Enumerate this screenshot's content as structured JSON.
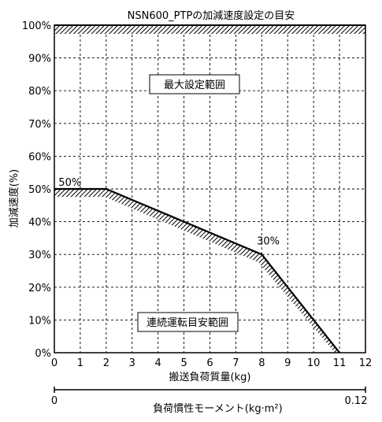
{
  "chart_data": {
    "type": "line",
    "title": "NSN600_PTPの加減速度設定の目安",
    "xlabel": "搬送負荷質量(kg)",
    "ylabel": "加減速度(%)",
    "xlim": [
      0,
      12
    ],
    "ylim": [
      0,
      100
    ],
    "x_ticks": [
      "0",
      "1",
      "2",
      "3",
      "4",
      "5",
      "6",
      "7",
      "8",
      "9",
      "10",
      "11",
      "12"
    ],
    "y_ticks": [
      "0%",
      "10%",
      "20%",
      "30%",
      "40%",
      "50%",
      "60%",
      "70%",
      "80%",
      "90%",
      "100%"
    ],
    "grid": true,
    "series": [
      {
        "x": [
          0,
          2,
          8,
          11
        ],
        "values": [
          50,
          50,
          30,
          0
        ]
      }
    ],
    "max_line": 100,
    "point_labels": [
      {
        "text": "50%",
        "x": 0.6,
        "y": 51
      },
      {
        "text": "30%",
        "x": 8.25,
        "y": 33
      }
    ],
    "regions": {
      "max": "最大設定範囲",
      "continuous": "連続運転目安範囲"
    },
    "secondary_axis": {
      "label": "負荷慣性モーメント(kg·m²)",
      "min_label": "0",
      "max_label": "0.12"
    }
  }
}
